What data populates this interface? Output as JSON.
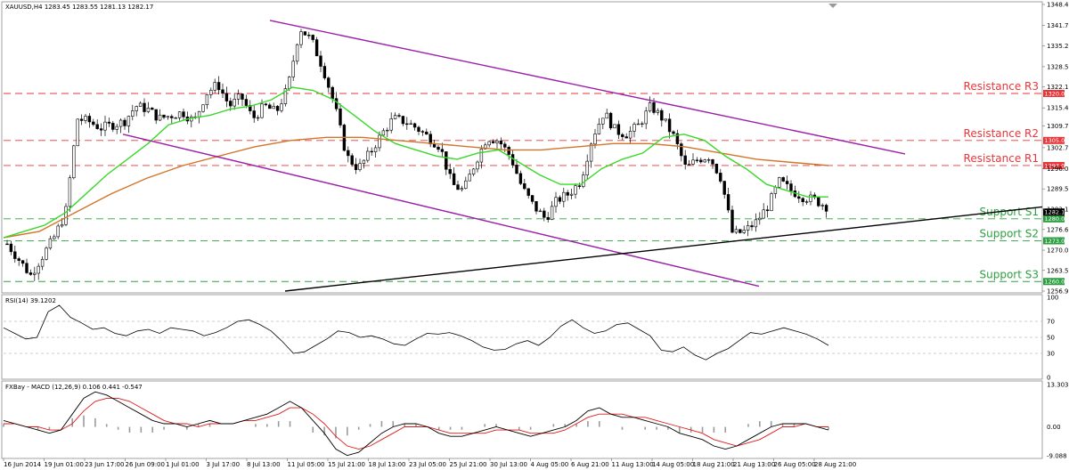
{
  "header": {
    "symbol_line": "XAUUSD,H4 1283.45 1283.55 1281.13 1282.17",
    "rsi_label": "RSI(14) 39.1202",
    "macd_label": "FXBay - MACD (12,26,9) 0.106 0.441 -0.547"
  },
  "colors": {
    "resistance": "#e8363a",
    "support": "#2ea043",
    "channel": "#9b1fa8",
    "trendline": "#000000",
    "ma_fast": "#39d829",
    "ma_slow": "#d2752a",
    "price_badge": "#000000"
  },
  "chart_data": [
    {
      "type": "candlestick",
      "panel": "price",
      "symbol": "XAUUSD",
      "timeframe": "H4",
      "ohlc_last": {
        "open": 1283.45,
        "high": 1283.55,
        "low": 1281.13,
        "close": 1282.17
      },
      "y_ticks": [
        "1348.40",
        "1341.70",
        "1335.25",
        "1328.55",
        "1322.10",
        "1315.40",
        "1309.70",
        "1302.70",
        "1296.00",
        "1289.55",
        "1283.10",
        "1276.60",
        "1270.00",
        "1263.55",
        "1256.95"
      ],
      "ylim": [
        1256.95,
        1348.4
      ],
      "levels": [
        {
          "label": "Resistance R3",
          "value": 1320.0,
          "badge": "1320.00",
          "kind": "resistance"
        },
        {
          "label": "Resistance R2",
          "value": 1305.0,
          "badge": "1305.00",
          "kind": "resistance"
        },
        {
          "label": "Resistance R1",
          "value": 1297.0,
          "badge": "1297.00",
          "kind": "resistance"
        },
        {
          "label": "Support S1",
          "value": 1280.0,
          "badge": "1280.00",
          "kind": "support"
        },
        {
          "label": "Support S2",
          "value": 1273.0,
          "badge": "1273.00",
          "kind": "support"
        },
        {
          "label": "Support S3",
          "value": 1260.0,
          "badge": "1260.00",
          "kind": "support"
        }
      ],
      "current_price_badge": "1282.17",
      "x_ticks": [
        "16 Jun 2014",
        "19 Jun 01:00",
        "23 Jun 17:00",
        "26 Jun 09:00",
        "1 Jul 01:00",
        "3 Jul 17:00",
        "8 Jul 13:00",
        "11 Jul 05:00",
        "15 Jul 21:00",
        "18 Jul 13:00",
        "23 Jul 05:00",
        "25 Jul 21:00",
        "30 Jul 13:00",
        "4 Aug 05:00",
        "6 Aug 21:00",
        "11 Aug 13:00",
        "14 Aug 05:00",
        "18 Aug 21:00",
        "21 Aug 13:00",
        "26 Aug 05:00",
        "28 Aug 21:00"
      ],
      "close_path": [
        1272,
        1267,
        1262,
        1268,
        1274,
        1282,
        1312,
        1311,
        1309,
        1310,
        1311,
        1316,
        1315,
        1312,
        1313,
        1314,
        1311,
        1320,
        1323,
        1316,
        1319,
        1312,
        1316,
        1314,
        1322,
        1341,
        1337,
        1328,
        1316,
        1300,
        1296,
        1301,
        1307,
        1312,
        1311,
        1309,
        1306,
        1303,
        1291,
        1289,
        1298,
        1306,
        1305,
        1300,
        1290,
        1284,
        1280,
        1286,
        1288,
        1292,
        1306,
        1314,
        1308,
        1307,
        1310,
        1316,
        1312,
        1306,
        1296,
        1299,
        1300,
        1293,
        1275,
        1276,
        1279,
        1284,
        1292,
        1289,
        1287,
        1286,
        1284
      ],
      "ma_fast_path": [
        1274,
        1276,
        1278,
        1282,
        1288,
        1294,
        1299,
        1304,
        1310,
        1312,
        1313,
        1315,
        1316,
        1318,
        1322,
        1321,
        1318,
        1313,
        1308,
        1304,
        1302,
        1300,
        1299,
        1301,
        1302,
        1298,
        1294,
        1291,
        1291,
        1296,
        1299,
        1301,
        1306,
        1307,
        1305,
        1300,
        1296,
        1291,
        1289,
        1287,
        1287
      ],
      "ma_slow_path": [
        1274,
        1276,
        1282,
        1288,
        1293,
        1297,
        1300,
        1303,
        1305,
        1306,
        1306,
        1305,
        1304,
        1303,
        1302,
        1302,
        1303,
        1304,
        1304,
        1303,
        1301,
        1299,
        1298,
        1297
      ],
      "series": [
        {
          "name": "Resistance R3",
          "values": [
            1320.0
          ]
        },
        {
          "name": "Resistance R2",
          "values": [
            1305.0
          ]
        },
        {
          "name": "Resistance R1",
          "values": [
            1297.0
          ]
        },
        {
          "name": "Support S1",
          "values": [
            1280.0
          ]
        },
        {
          "name": "Support S2",
          "values": [
            1273.0
          ]
        },
        {
          "name": "Support S3",
          "values": [
            1260.0
          ]
        }
      ]
    },
    {
      "type": "line",
      "panel": "rsi",
      "series": [
        {
          "name": "RSI(14)",
          "last": 39.1202
        }
      ],
      "y_ticks": [
        "100",
        "70",
        "50",
        "30",
        "0"
      ],
      "ylim": [
        0,
        100
      ],
      "levels": [
        70,
        50,
        30
      ],
      "values": [
        62,
        55,
        48,
        50,
        82,
        90,
        75,
        68,
        60,
        62,
        55,
        52,
        58,
        60,
        55,
        62,
        60,
        58,
        52,
        56,
        62,
        70,
        72,
        66,
        58,
        45,
        30,
        32,
        40,
        48,
        58,
        56,
        50,
        52,
        48,
        42,
        40,
        48,
        55,
        54,
        56,
        52,
        46,
        38,
        34,
        35,
        42,
        46,
        40,
        50,
        64,
        72,
        62,
        55,
        58,
        66,
        68,
        60,
        52,
        34,
        32,
        38,
        28,
        22,
        30,
        36,
        46,
        56,
        54,
        58,
        62,
        58,
        54,
        48,
        40
      ]
    },
    {
      "type": "line",
      "panel": "macd",
      "series": [
        {
          "name": "MACD",
          "value": 0.106
        },
        {
          "name": "Signal",
          "value": 0.441
        },
        {
          "name": "Histogram",
          "value": -0.547
        }
      ],
      "y_ticks": [
        "13.303",
        "0.00",
        "-9.088"
      ],
      "ylim": [
        -9.088,
        13.303
      ],
      "macd_path": [
        2,
        1,
        0,
        -1,
        -2,
        -1,
        4,
        9,
        11,
        10,
        8,
        6,
        4,
        2,
        1,
        1,
        0,
        1,
        2,
        1,
        1,
        2,
        3,
        4,
        6,
        8,
        6,
        2,
        -2,
        -7,
        -9,
        -8,
        -5,
        -2,
        0,
        1,
        1,
        0,
        -2,
        -3,
        -3,
        -2,
        -1,
        0,
        -1,
        -2,
        -3,
        -2,
        -1,
        0,
        2,
        5,
        6,
        4,
        3,
        3,
        2,
        1,
        0,
        -2,
        -3,
        -4,
        -6,
        -7,
        -6,
        -4,
        -2,
        0,
        1,
        1,
        1,
        0,
        -1
      ],
      "signal_path": [
        1,
        1,
        0,
        0,
        -1,
        -1,
        1,
        5,
        8,
        9,
        9,
        8,
        6,
        4,
        2,
        1,
        1,
        0,
        1,
        1,
        1,
        2,
        2,
        3,
        4,
        6,
        6,
        4,
        1,
        -3,
        -6,
        -7,
        -6,
        -4,
        -2,
        0,
        0,
        0,
        -1,
        -2,
        -2,
        -2,
        -2,
        -1,
        -1,
        -1,
        -2,
        -2,
        -2,
        -1,
        1,
        3,
        4,
        4,
        4,
        3,
        3,
        2,
        1,
        0,
        -1,
        -2,
        -4,
        -5,
        -6,
        -5,
        -4,
        -2,
        0,
        0,
        1,
        0,
        0
      ]
    }
  ]
}
